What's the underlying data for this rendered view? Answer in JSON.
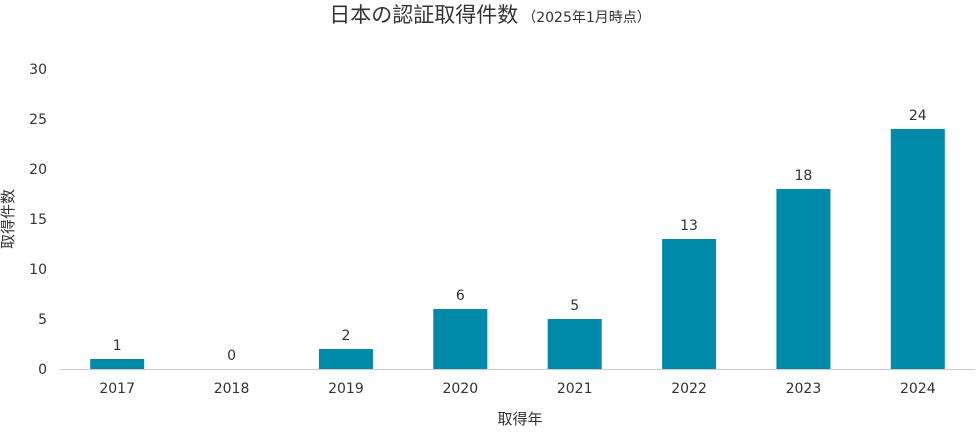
{
  "chart_data": {
    "type": "bar",
    "title": "日本の認証取得件数",
    "subtitle": "（2025年1月時点）",
    "xlabel": "取得年",
    "ylabel": "取得件数",
    "categories": [
      "2017",
      "2018",
      "2019",
      "2020",
      "2021",
      "2022",
      "2023",
      "2024"
    ],
    "values": [
      1,
      0,
      2,
      6,
      5,
      13,
      18,
      24
    ],
    "data_labels": [
      "1",
      "0",
      "2",
      "6",
      "5",
      "13",
      "18",
      "24"
    ],
    "ylim": [
      0,
      30
    ],
    "yticks": [
      0,
      5,
      10,
      15,
      20,
      25,
      30
    ],
    "grid": false,
    "legend": "none",
    "bar_color": "#008aa9",
    "baseline_color": "#cccccc"
  }
}
